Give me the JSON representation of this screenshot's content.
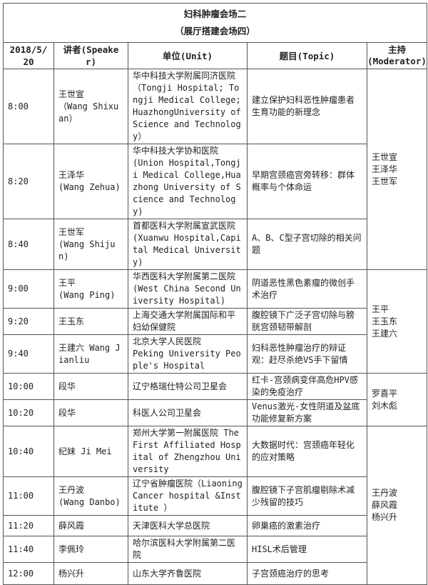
{
  "title": {
    "line1": "妇科肿瘤会场二",
    "line2": "（展厅搭建会场四）"
  },
  "header": {
    "date": "2018/5/20",
    "speaker": "讲者(Speaker)",
    "unit": "单位(Unit)",
    "topic": "题目(Topic)",
    "moderator_line1": "主持",
    "moderator_line2": "(Moderator)"
  },
  "rows": [
    {
      "time": "8:00",
      "speaker": "王世宣\n（Wang Shixuan）",
      "unit": "华中科技大学附属同济医院（Tongji Hospital; Tongji Medical College; HuazhongUniversity of Science and Technology）",
      "topic": "建立保护妇科恶性肿瘤患者生育功能的新理念"
    },
    {
      "time": "8:20",
      "speaker": "王泽华\n(Wang Zehua)",
      "unit": "华中科技大学协和医院\n(Union Hospital,Tongji Medical College,Huazhong University of Science and Technology)",
      "topic": "早期宫颈癌宫旁转移：群体概率与个体命运"
    },
    {
      "time": "8:40",
      "speaker": "王世军\n(Wang Shijun)",
      "unit": "首都医科大学附属宣武医院\n(Xuanwu Hospital,Capital Medical University)",
      "topic": "A、B、C型子宫切除的相关问题"
    },
    {
      "time": "9:00",
      "speaker": "王平\n(Wang Ping)",
      "unit": "华西医科大学附属第二医院\n(West China Second University Hospital)",
      "topic": "阴道恶性黑色素瘤的微创手术治疗"
    },
    {
      "time": "9:20",
      "speaker": "王玉东",
      "unit": "上海交通大学附属国际和平妇幼保健院",
      "topic": "腹腔镜下广泛子宫切除与膀胱宫颈韧带解剖"
    },
    {
      "time": "9:40",
      "speaker": "王建六 Wang Jianliu",
      "unit": "北京大学人民医院\nPeking University People's Hospital",
      "topic": "妇科恶性肿瘤治疗的辩证观：赶尽杀绝VS手下留情"
    },
    {
      "time": "10:00",
      "speaker": "段华",
      "unit": "辽宁格瑞仕特公司卫星会",
      "topic": "红卡-宫颈病变伴高危HPV感染的免疫治疗"
    },
    {
      "time": "10:20",
      "speaker": "段华",
      "unit": "科医人公司卫星会",
      "topic": "Venus激光-女性阴道及盆底功能修复新方案"
    },
    {
      "time": "10:40",
      "speaker": "纪妹 Ji Mei",
      "unit": "郑州大学第一附属医院 The First Affiliated Hospital of Zhengzhou University",
      "topic": "大数据时代：宫颈癌年轻化的应对策略"
    },
    {
      "time": "11:00",
      "speaker": "王丹波\n(Wang Danbo)",
      "unit": "辽宁省肿瘤医院（Liaoning Cancer hospital &Institute ）",
      "topic": "腹腔镜下子宫肌瘤剔除术减少残留的技巧"
    },
    {
      "time": "11:20",
      "speaker": "薛风霞",
      "unit": "天津医科大学总医院",
      "topic": "卵巢癌的激素治疗"
    },
    {
      "time": "11:40",
      "speaker": "李佩玲",
      "unit": "哈尔滨医科大学附属第二医院",
      "topic": "HISL术后管理"
    },
    {
      "time": "12:00",
      "speaker": "杨兴升",
      "unit": "山东大学齐鲁医院",
      "topic": "子宫颈癌治疗的思考"
    }
  ],
  "moderators": [
    {
      "start": 0,
      "span": 3,
      "names": "王世宣\n王泽华\n王世军"
    },
    {
      "start": 3,
      "span": 3,
      "names": "王平\n王玉东\n王建六"
    },
    {
      "start": 6,
      "span": 2,
      "names": "罗喜平\n刘木彪"
    },
    {
      "start": 8,
      "span": 5,
      "names": "王丹波\n薛风霞\n杨兴升"
    }
  ]
}
